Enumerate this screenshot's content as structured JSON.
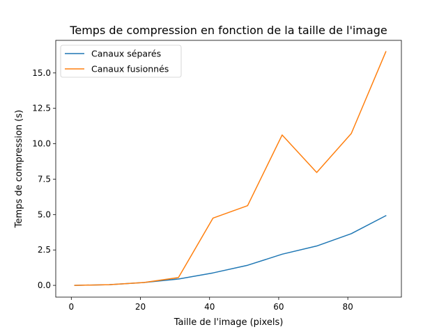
{
  "chart_data": {
    "type": "line",
    "title": "Temps de compression en fonction de la taille de l'image",
    "xlabel": "Taille de l'image (pixels)",
    "ylabel": "Temps de compression (s)",
    "xlim": [
      -4.5,
      95.5
    ],
    "ylim": [
      -0.83,
      17.3
    ],
    "xticks": [
      0,
      20,
      40,
      60,
      80
    ],
    "xtick_labels": [
      "0",
      "20",
      "40",
      "60",
      "80"
    ],
    "yticks": [
      0,
      2.5,
      5,
      7.5,
      10,
      12.5,
      15
    ],
    "ytick_labels": [
      "0.0",
      "2.5",
      "5.0",
      "7.5",
      "10.0",
      "12.5",
      "15.0"
    ],
    "grid": false,
    "legend_position": "top-left",
    "x": [
      1,
      11,
      21,
      31,
      41,
      51,
      61,
      71,
      81,
      91
    ],
    "series": [
      {
        "name": "Canaux séparés",
        "color": "#1f77b4",
        "values": [
          0.0,
          0.05,
          0.2,
          0.45,
          0.88,
          1.42,
          2.2,
          2.78,
          3.65,
          4.92
        ]
      },
      {
        "name": "Canaux fusionnés",
        "color": "#ff7f0e",
        "values": [
          0.0,
          0.05,
          0.2,
          0.55,
          4.75,
          5.63,
          10.62,
          7.97,
          10.72,
          16.5
        ]
      }
    ]
  }
}
